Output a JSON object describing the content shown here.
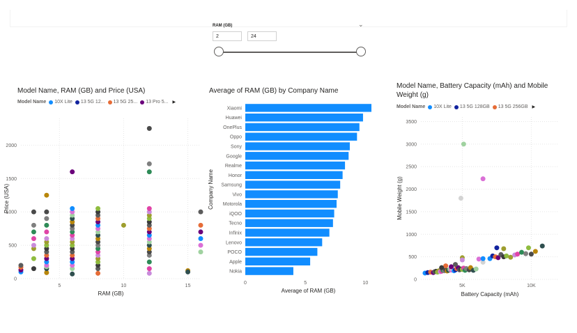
{
  "slicer": {
    "title": "RAM (GB)",
    "min_value": "2",
    "max_value": "24"
  },
  "chart_data": [
    {
      "type": "scatter",
      "title": "Model Name, RAM (GB) and Price (USA)",
      "xlabel": "RAM (GB)",
      "ylabel": "Price (USA)",
      "xlim": [
        2,
        16
      ],
      "ylim": [
        0,
        2400
      ],
      "x_ticks": [
        5,
        10,
        15
      ],
      "y_ticks": [
        0,
        500,
        1000,
        1500,
        2000
      ],
      "legend_title": "Model Name",
      "legend": [
        {
          "name": "10X Lite",
          "color": "#118DFF"
        },
        {
          "name": "13 5G 12...",
          "color": "#12239E"
        },
        {
          "name": "13 5G 25...",
          "color": "#E66C37"
        },
        {
          "name": "13 Pro 5...",
          "color": "#6B007B"
        }
      ],
      "points": [
        [
          2,
          100
        ],
        [
          2,
          130
        ],
        [
          2,
          170
        ],
        [
          2,
          200
        ],
        [
          3,
          150
        ],
        [
          3,
          300
        ],
        [
          3,
          450
        ],
        [
          3,
          500
        ],
        [
          3,
          600
        ],
        [
          3,
          700
        ],
        [
          3,
          800
        ],
        [
          3,
          1000
        ],
        [
          4,
          90
        ],
        [
          4,
          150
        ],
        [
          4,
          180
        ],
        [
          4,
          200
        ],
        [
          4,
          250
        ],
        [
          4,
          300
        ],
        [
          4,
          350
        ],
        [
          4,
          400
        ],
        [
          4,
          450
        ],
        [
          4,
          500
        ],
        [
          4,
          550
        ],
        [
          4,
          600
        ],
        [
          4,
          700
        ],
        [
          4,
          800
        ],
        [
          4,
          900
        ],
        [
          4,
          1000
        ],
        [
          4,
          1250
        ],
        [
          6,
          70
        ],
        [
          6,
          150
        ],
        [
          6,
          200
        ],
        [
          6,
          250
        ],
        [
          6,
          300
        ],
        [
          6,
          350
        ],
        [
          6,
          400
        ],
        [
          6,
          450
        ],
        [
          6,
          500
        ],
        [
          6,
          550
        ],
        [
          6,
          600
        ],
        [
          6,
          650
        ],
        [
          6,
          700
        ],
        [
          6,
          750
        ],
        [
          6,
          800
        ],
        [
          6,
          850
        ],
        [
          6,
          900
        ],
        [
          6,
          950
        ],
        [
          6,
          1000
        ],
        [
          6,
          1050
        ],
        [
          6,
          1600
        ],
        [
          8,
          80
        ],
        [
          8,
          150
        ],
        [
          8,
          200
        ],
        [
          8,
          250
        ],
        [
          8,
          300
        ],
        [
          8,
          350
        ],
        [
          8,
          400
        ],
        [
          8,
          450
        ],
        [
          8,
          500
        ],
        [
          8,
          550
        ],
        [
          8,
          600
        ],
        [
          8,
          650
        ],
        [
          8,
          700
        ],
        [
          8,
          750
        ],
        [
          8,
          800
        ],
        [
          8,
          850
        ],
        [
          8,
          900
        ],
        [
          8,
          950
        ],
        [
          8,
          1000
        ],
        [
          8,
          1050
        ],
        [
          10,
          800
        ],
        [
          12,
          80
        ],
        [
          12,
          150
        ],
        [
          12,
          250
        ],
        [
          12,
          350
        ],
        [
          12,
          400
        ],
        [
          12,
          450
        ],
        [
          12,
          500
        ],
        [
          12,
          550
        ],
        [
          12,
          600
        ],
        [
          12,
          650
        ],
        [
          12,
          700
        ],
        [
          12,
          750
        ],
        [
          12,
          800
        ],
        [
          12,
          850
        ],
        [
          12,
          900
        ],
        [
          12,
          950
        ],
        [
          12,
          1000
        ],
        [
          12,
          1050
        ],
        [
          12,
          1600
        ],
        [
          12,
          1720
        ],
        [
          12,
          2250
        ],
        [
          15,
          120
        ],
        [
          15,
          100
        ],
        [
          16,
          400
        ],
        [
          16,
          500
        ],
        [
          16,
          600
        ],
        [
          16,
          700
        ],
        [
          16,
          800
        ],
        [
          16,
          1000
        ]
      ],
      "point_colors": [
        "#118DFF",
        "#6B007B",
        "#E66C37",
        "#5C5C5C",
        "#3B3B3B",
        "#8FBC3F",
        "#9E9E2E",
        "#C98BDB",
        "#E044A7",
        "#2E8B57",
        "#7F7F7F",
        "#4A4A4A",
        "#B8860B",
        "#2F4F4F",
        "#A0D2A0",
        "#DA70D6"
      ]
    },
    {
      "type": "bar",
      "orientation": "horizontal",
      "title": "Average of RAM (GB) by Company Name",
      "xlabel": "Average of RAM (GB)",
      "ylabel": "Company Name",
      "xlim": [
        0,
        10.5
      ],
      "x_ticks": [
        0,
        5,
        10
      ],
      "color": "#118DFF",
      "categories": [
        "Xiaomi",
        "Huawei",
        "OnePlus",
        "Oppo",
        "Sony",
        "Google",
        "Realme",
        "Honor",
        "Samsung",
        "Vivo",
        "Motorola",
        "iQOO",
        "Tecno",
        "Infinix",
        "Lenovo",
        "POCO",
        "Apple",
        "Nokia"
      ],
      "values": [
        10.5,
        9.8,
        9.5,
        9.3,
        8.7,
        8.6,
        8.3,
        8.1,
        7.9,
        7.7,
        7.6,
        7.4,
        7.3,
        7.0,
        6.4,
        6.0,
        5.4,
        4.0
      ]
    },
    {
      "type": "scatter",
      "title": "Model Name, Battery Capacity (mAh) and Mobile Weight (g)",
      "title_line1": "Model Name, Battery Capacity (mAh) and Mobile",
      "title_line2": "Weight (g)",
      "xlabel": "Battery Capacity (mAh)",
      "ylabel": "Mobile Weight (g)",
      "xlim": [
        2000,
        12000
      ],
      "ylim": [
        0,
        3600
      ],
      "x_ticks": [
        5000,
        10000
      ],
      "x_tick_labels": [
        "5K",
        "10K"
      ],
      "y_ticks": [
        0,
        500,
        1000,
        1500,
        2000,
        2500,
        3000,
        3500
      ],
      "legend_title": "Model Name",
      "legend": [
        {
          "name": "10X Lite",
          "color": "#118DFF"
        },
        {
          "name": "13 5G 128GB",
          "color": "#12239E"
        },
        {
          "name": "13 5G 256GB",
          "color": "#E66C37"
        }
      ],
      "points": [
        [
          2300,
          140
        ],
        [
          2500,
          150
        ],
        [
          2700,
          160
        ],
        [
          2900,
          150
        ],
        [
          3000,
          170
        ],
        [
          3100,
          180
        ],
        [
          3200,
          160
        ],
        [
          3300,
          190
        ],
        [
          3400,
          170
        ],
        [
          3500,
          180
        ],
        [
          3600,
          200
        ],
        [
          3700,
          190
        ],
        [
          3800,
          210
        ],
        [
          3900,
          185
        ],
        [
          4000,
          200
        ],
        [
          4100,
          220
        ],
        [
          4200,
          205
        ],
        [
          4300,
          230
        ],
        [
          4400,
          190
        ],
        [
          4500,
          210
        ],
        [
          4600,
          240
        ],
        [
          4700,
          260
        ],
        [
          4800,
          210
        ],
        [
          4900,
          230
        ],
        [
          5000,
          220
        ],
        [
          5000,
          480
        ],
        [
          5000,
          430
        ],
        [
          5100,
          250
        ],
        [
          5200,
          200
        ],
        [
          5300,
          240
        ],
        [
          5500,
          210
        ],
        [
          5600,
          260
        ],
        [
          5800,
          200
        ],
        [
          6000,
          230
        ],
        [
          6200,
          450
        ],
        [
          6500,
          380
        ],
        [
          7000,
          460
        ],
        [
          7200,
          520
        ],
        [
          7400,
          500
        ],
        [
          7600,
          480
        ],
        [
          7800,
          550
        ],
        [
          8000,
          500
        ],
        [
          8200,
          520
        ],
        [
          8500,
          490
        ],
        [
          8800,
          540
        ],
        [
          9000,
          560
        ],
        [
          9300,
          600
        ],
        [
          9600,
          570
        ],
        [
          10000,
          560
        ],
        [
          10300,
          620
        ],
        [
          10800,
          740
        ],
        [
          5100,
          3000
        ],
        [
          6500,
          2230
        ],
        [
          4900,
          1800
        ],
        [
          6500,
          460
        ],
        [
          7500,
          700
        ],
        [
          3800,
          300
        ],
        [
          4200,
          280
        ],
        [
          4500,
          330
        ],
        [
          3500,
          260
        ],
        [
          9800,
          700
        ],
        [
          8000,
          680
        ]
      ],
      "point_colors": [
        "#118DFF",
        "#12239E",
        "#E66C37",
        "#6B007B",
        "#5C5C5C",
        "#3B3B3B",
        "#8FBC3F",
        "#9E9E2E",
        "#C98BDB",
        "#E044A7",
        "#2E8B57",
        "#7F7F7F",
        "#4A4A4A",
        "#B8860B",
        "#2F4F4F",
        "#A0D2A0",
        "#DA70D6",
        "#D3D3D3"
      ]
    }
  ]
}
